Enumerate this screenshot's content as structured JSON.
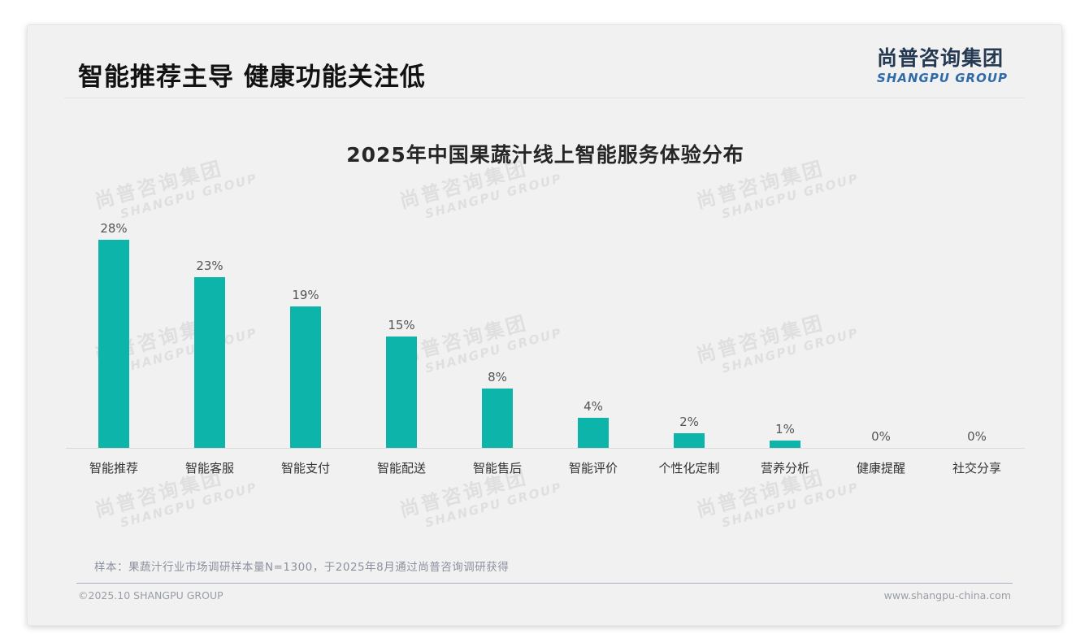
{
  "page": {
    "title": "智能推荐主导 健康功能关注低",
    "logo": {
      "cn": "尚普咨询集团",
      "en": "SHANGPU GROUP"
    },
    "watermark": {
      "line1": "尚普咨询集团",
      "line2": "SHANGPU GROUP"
    },
    "footnote": "样本：果蔬汁行业市场调研样本量N=1300，于2025年8月通过尚普咨询调研获得",
    "footer": {
      "left": "©2025.10 SHANGPU GROUP",
      "right": "www.shangpu-china.com"
    }
  },
  "chart_data": {
    "type": "bar",
    "title": "2025年中国果蔬汁线上智能服务体验分布",
    "categories": [
      "智能推荐",
      "智能客服",
      "智能支付",
      "智能配送",
      "智能售后",
      "智能评价",
      "个性化定制",
      "营养分析",
      "健康提醒",
      "社交分享"
    ],
    "values": [
      28,
      23,
      19,
      15,
      8,
      4,
      2,
      1,
      0,
      0
    ],
    "value_labels": [
      "28%",
      "23%",
      "19%",
      "15%",
      "8%",
      "4%",
      "2%",
      "1%",
      "0%",
      "0%"
    ],
    "unit": "%",
    "bar_color": "#0cb4a9",
    "ylim": [
      0,
      28
    ],
    "grid": false,
    "legend": "none",
    "data_labels_position": "above bars"
  }
}
